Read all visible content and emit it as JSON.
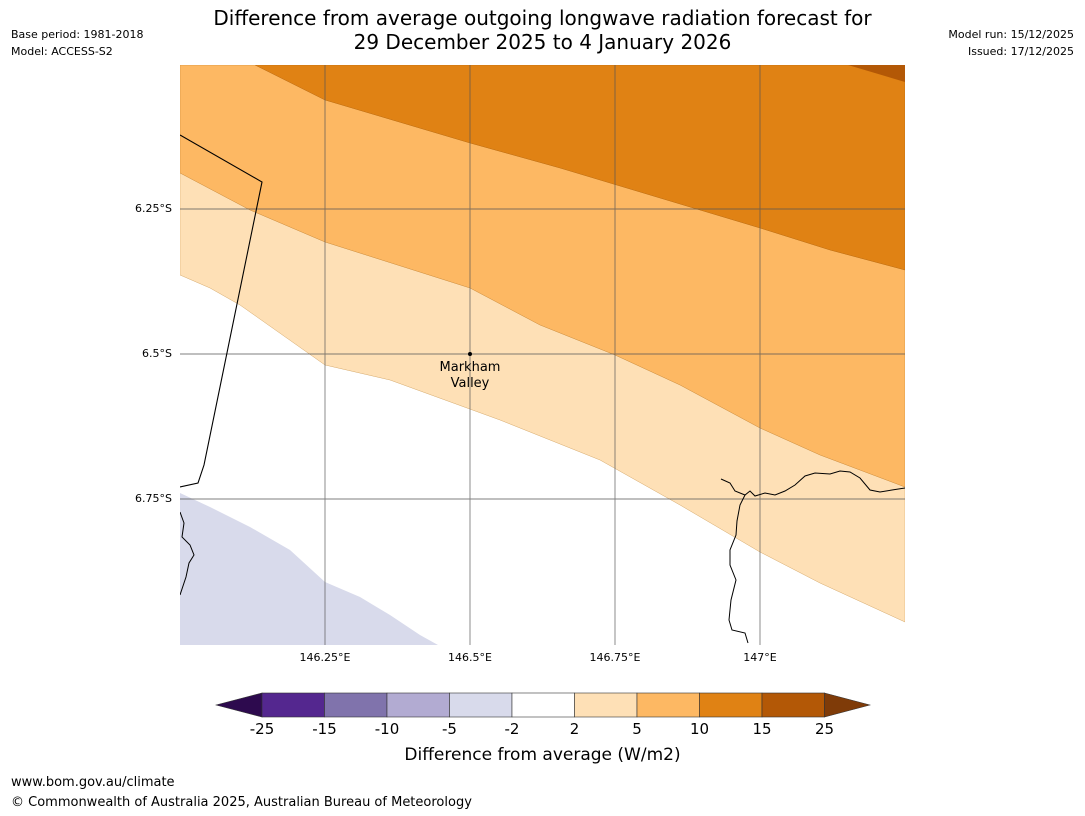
{
  "title": {
    "line1": "Difference from average outgoing longwave radiation forecast for",
    "line2": "29 December 2025 to 4 January 2026"
  },
  "meta_left": {
    "base_period": "Base period: 1981-2018",
    "model": "Model: ACCESS-S2"
  },
  "meta_right": {
    "model_run": "Model run: 15/12/2025",
    "issued": "Issued: 17/12/2025"
  },
  "map": {
    "lat_ticks": [
      "6.25°S",
      "6.5°S",
      "6.75°S"
    ],
    "lon_ticks": [
      "146.25°E",
      "146.5°E",
      "146.75°E",
      "147°E"
    ],
    "place": {
      "line1": "Markham",
      "line2": "Valley"
    }
  },
  "colorbar": {
    "title": "Difference from average (W/m2)",
    "labels": [
      "-25",
      "-15",
      "-10",
      "-5",
      "-2",
      "2",
      "5",
      "10",
      "15",
      "25"
    ],
    "colors": {
      "under": "#2d0a4e",
      "bins": [
        "#54278f",
        "#8073ac",
        "#b2abd2",
        "#d8daeb",
        "#ffffff",
        "#fee0b6",
        "#fdb863",
        "#e08214",
        "#b35806"
      ],
      "over": "#7f3b08"
    }
  },
  "footer": {
    "url": "www.bom.gov.au/climate",
    "copyright": "© Commonwealth of Australia 2025, Australian Bureau of Meteorology"
  }
}
